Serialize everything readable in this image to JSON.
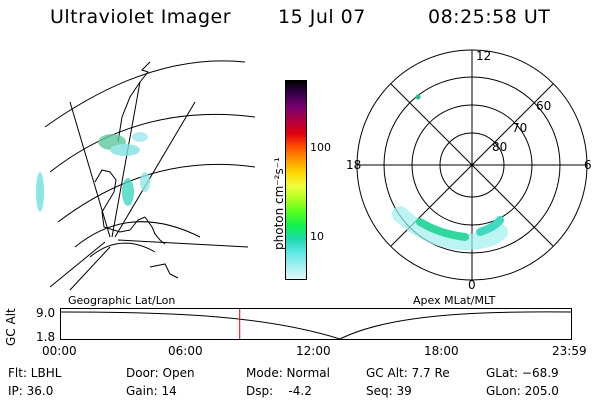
{
  "header": {
    "title": "Ultraviolet Imager",
    "date": "15 Jul 07",
    "time": "08:25:58 UT"
  },
  "colorbar": {
    "label": "photon cm⁻²s⁻¹",
    "ticks": [
      "100",
      "10"
    ],
    "colors": [
      "#000000",
      "#3a0050",
      "#7a0070",
      "#b00040",
      "#e00010",
      "#ff5000",
      "#ff9a00",
      "#ffd800",
      "#f0ff40",
      "#a8ff20",
      "#50ff20",
      "#10f050",
      "#20d8b0",
      "#60e8e8",
      "#a0f0f0",
      "#e0f8f8"
    ]
  },
  "geo_panel": {
    "label": "Geographic Lat/Lon",
    "aurora_color": "#30d0b0"
  },
  "apex_panel": {
    "label": "Apex MLat/MLT",
    "mlt_labels": {
      "top": "12",
      "bottom": "0",
      "left": "18",
      "right": "6"
    },
    "lat_labels": [
      "80",
      "70",
      "60"
    ]
  },
  "timeline": {
    "ylabel": "GC Alt",
    "yticks": [
      "9.0",
      "1.8"
    ],
    "xticks": [
      "00:00",
      "06:00",
      "12:00",
      "18:00",
      "23:59"
    ],
    "marker_fraction": 0.351,
    "marker_color": "#e00000"
  },
  "info": {
    "filter": "Flt: LBHL",
    "ip": "IP: 36.0",
    "door": "Door: Open",
    "gain": "Gain: 14",
    "mode": "Mode: Normal",
    "dsp": "Dsp:    -4.2",
    "gcalt": "GC Alt: 7.7 Re",
    "seq": "Seq: 39",
    "glat": "GLat: −68.9",
    "glon": "GLon: 205.0"
  }
}
